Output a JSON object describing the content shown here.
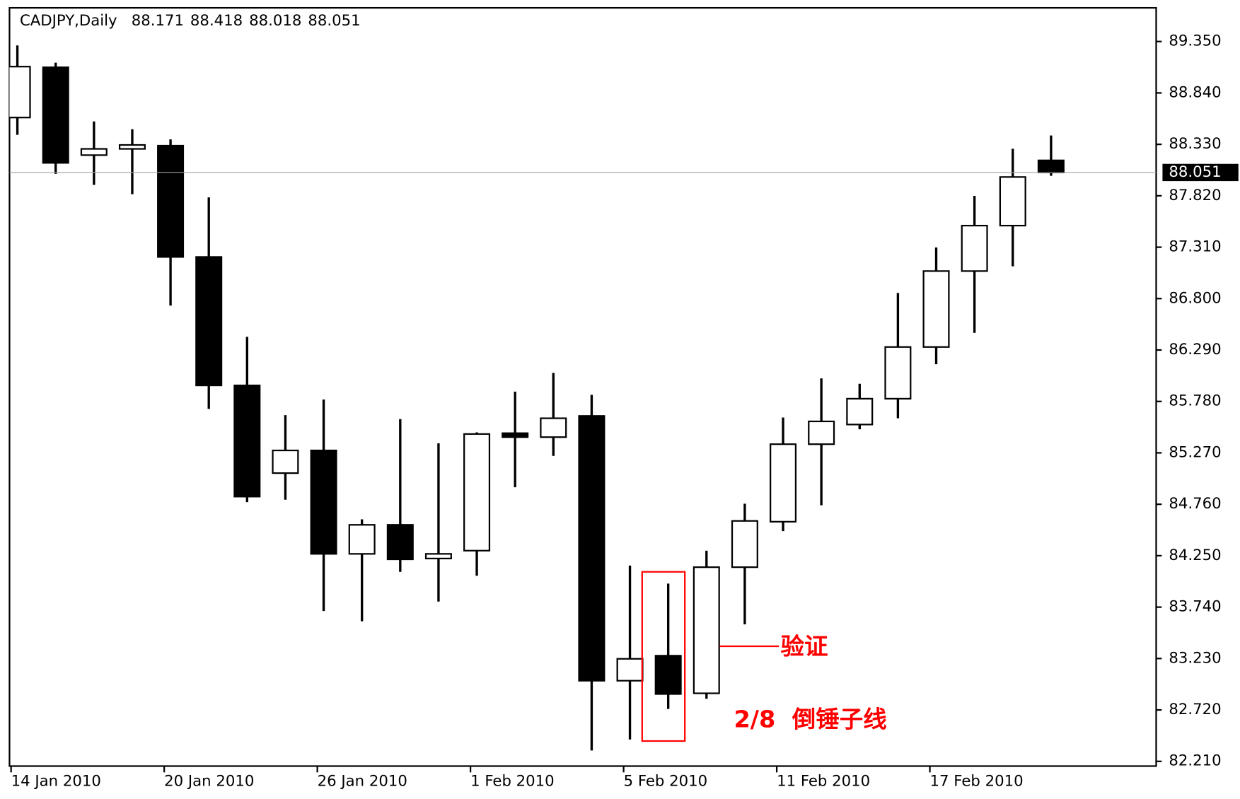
{
  "chart_data": {
    "type": "candlestick",
    "title": "CADJPY,Daily",
    "categories": [
      "14 Jan 2010",
      null,
      null,
      null,
      "20 Jan 2010",
      null,
      null,
      null,
      "26 Jan 2010",
      null,
      null,
      null,
      "1 Feb 2010",
      null,
      null,
      null,
      "5 Feb 2010",
      null,
      null,
      null,
      "11 Feb 2010",
      null,
      null,
      null,
      "17 Feb 2010",
      null,
      null,
      null
    ],
    "open": [
      88.596,
      89.094,
      88.223,
      88.285,
      88.317,
      87.213,
      85.939,
      85.069,
      85.294,
      84.268,
      84.556,
      84.222,
      84.3,
      85.465,
      85.426,
      85.636,
      83.01,
      83.258,
      82.885,
      84.136,
      84.587,
      85.356,
      85.551,
      85.807,
      86.32,
      87.073,
      87.524,
      88.171
    ],
    "high": [
      89.311,
      89.14,
      88.557,
      88.48,
      88.379,
      87.804,
      86.421,
      85.644,
      85.799,
      84.61,
      85.605,
      85.364,
      85.473,
      85.877,
      86.063,
      85.846,
      84.152,
      83.973,
      84.299,
      84.766,
      85.62,
      86.009,
      85.955,
      86.856,
      87.307,
      87.819,
      88.286,
      88.418
    ],
    "low": [
      88.425,
      88.037,
      87.928,
      87.835,
      86.731,
      85.706,
      84.781,
      84.805,
      83.701,
      83.6,
      84.09,
      83.795,
      84.051,
      84.929,
      85.24,
      82.318,
      82.427,
      82.73,
      82.831,
      83.569,
      84.494,
      84.75,
      85.504,
      85.613,
      86.149,
      86.46,
      87.12,
      88.018
    ],
    "close": [
      89.101,
      88.146,
      88.285,
      88.324,
      87.213,
      85.939,
      84.836,
      85.294,
      84.268,
      84.556,
      84.214,
      84.268,
      85.457,
      85.426,
      85.613,
      83.01,
      83.227,
      82.878,
      84.136,
      84.595,
      85.356,
      85.582,
      85.807,
      86.32,
      87.073,
      87.524,
      88.006,
      88.051
    ],
    "up_color": "#ffffff",
    "down_color": "#000000",
    "ylim": [
      82.163,
      89.684
    ],
    "yticks": [
      {
        "value": 89.35,
        "label": "89.350"
      },
      {
        "value": 88.84,
        "label": "88.840"
      },
      {
        "value": 88.33,
        "label": "88.330"
      },
      {
        "value": 87.82,
        "label": "87.820"
      },
      {
        "value": 87.31,
        "label": "87.310"
      },
      {
        "value": 86.8,
        "label": "86.800"
      },
      {
        "value": 86.29,
        "label": "86.290"
      },
      {
        "value": 85.78,
        "label": "85.780"
      },
      {
        "value": 85.27,
        "label": "85.270"
      },
      {
        "value": 84.76,
        "label": "84.760"
      },
      {
        "value": 84.25,
        "label": "84.250"
      },
      {
        "value": 83.74,
        "label": "83.740"
      },
      {
        "value": 83.23,
        "label": "83.230"
      },
      {
        "value": 82.72,
        "label": "82.720"
      },
      {
        "value": 82.21,
        "label": "82.210"
      }
    ],
    "annotations": [
      "验证",
      "2/8  倒锤子线"
    ]
  }
}
